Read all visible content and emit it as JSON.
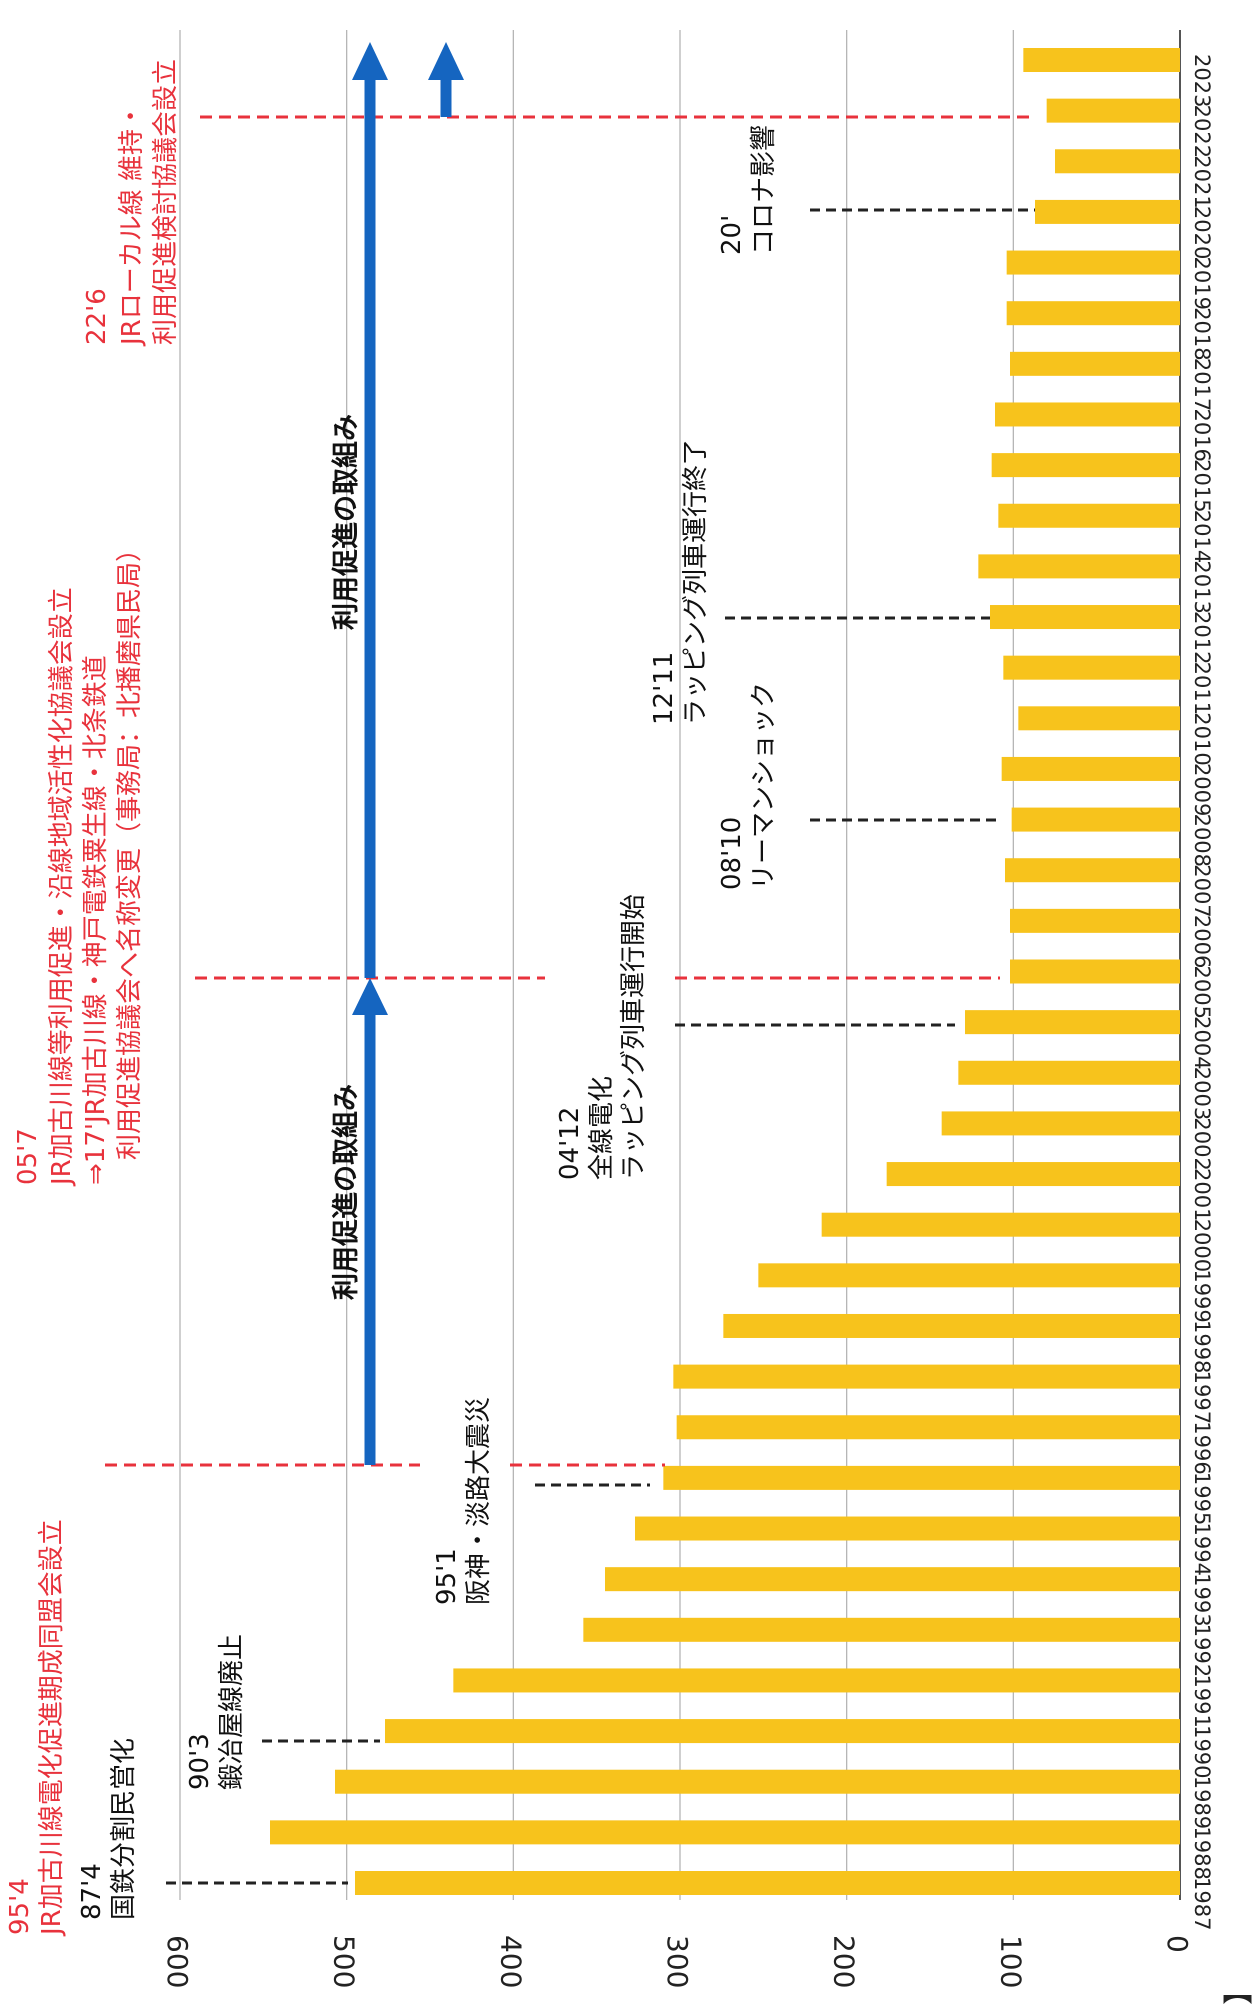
{
  "chart_data": {
    "type": "bar",
    "orientation": "rotated-90-clockwise",
    "unit_label": "【人】",
    "ylim": [
      0,
      600
    ],
    "yticks": [
      0,
      100,
      200,
      300,
      400,
      500,
      600
    ],
    "grid": true,
    "categories": [
      "1987",
      "1988",
      "1989",
      "1990",
      "1991",
      "1992",
      "1993",
      "1994",
      "1995",
      "1996",
      "1997",
      "1998",
      "1999",
      "2000",
      "2001",
      "2002",
      "2003",
      "2004",
      "2005",
      "2006",
      "2007",
      "2008",
      "2009",
      "2010",
      "2011",
      "2012",
      "2013",
      "2014",
      "2015",
      "2016",
      "2017",
      "2018",
      "2019",
      "2020",
      "2021",
      "2022",
      "2023"
    ],
    "values": [
      495,
      546,
      507,
      477,
      436,
      358,
      345,
      327,
      310,
      302,
      304,
      274,
      253,
      215,
      176,
      143,
      133,
      129,
      102,
      102,
      105,
      101,
      107,
      97,
      106,
      114,
      121,
      109,
      113,
      111,
      102,
      104,
      104,
      87,
      75,
      80,
      94
    ],
    "bar_color": "#f7c31c"
  },
  "events": {
    "e1987": {
      "date": "87'4",
      "text": "国鉄分割民営化"
    },
    "e1990": {
      "date": "90'3",
      "text": "鍛冶屋線廃止"
    },
    "e1995": {
      "date": "95'1",
      "text": "阪神・淡路大震災"
    },
    "e2004": {
      "date": "04'12",
      "line1": "全線電化",
      "line2": "ラッピング列車運行開始"
    },
    "e2008": {
      "date": "08'10",
      "text": "リーマンショック"
    },
    "e2012": {
      "date": "12'11",
      "text": "ラッピング列車運行終了"
    },
    "e2020": {
      "date": "20'",
      "text": "コロナ影響"
    }
  },
  "milestones": {
    "m1995": {
      "date": "95'4",
      "text": "JR加古川線電化促進期成同盟会設立"
    },
    "m2005": {
      "date": "05'7",
      "line1": "JR加古川線等利用促進・沿線地域活性化協議会設立",
      "line2": "⇒17'JR加古川線・神戸電鉄粟生線・北条鉄道",
      "line3": "利用促進協議会へ名称変更（事務局：北播磨県民局）"
    },
    "m2022": {
      "date": "22'6",
      "line1": "JRローカル線 維持・",
      "line2": "利用促進検討協議会設立"
    }
  },
  "arrows": {
    "a1": "利用促進の取組み",
    "a2": "利用促進の取組み"
  },
  "colors": {
    "milestone_red": "#e8323c",
    "arrow_blue": "#1565c0",
    "event_dash": "#222222"
  }
}
